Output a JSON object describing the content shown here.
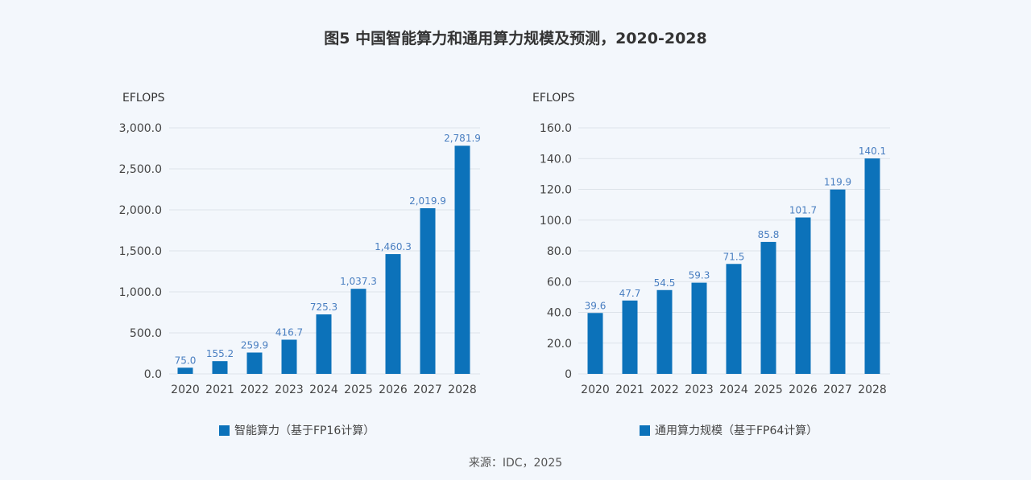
{
  "title": "图5 中国智能算力和通用算力规模及预测，2020-2028",
  "source": "来源：IDC，2025",
  "colors": {
    "bar": "#0c72ba",
    "label": "#4a7fc1"
  },
  "chart_data": [
    {
      "type": "bar",
      "title": "",
      "ylabel": "EFLOPS",
      "xlabel": "",
      "categories": [
        "2020",
        "2021",
        "2022",
        "2023",
        "2024",
        "2025",
        "2026",
        "2027",
        "2028"
      ],
      "values": [
        75.0,
        155.2,
        259.9,
        416.7,
        725.3,
        1037.3,
        1460.3,
        2019.9,
        2781.9
      ],
      "data_labels": [
        "75.0",
        "155.2",
        "259.9",
        "416.7",
        "725.3",
        "1,037.3",
        "1,460.3",
        "2,019.9",
        "2,781.9"
      ],
      "ylim": [
        0,
        3000
      ],
      "yticks": [
        0,
        500,
        1000,
        1500,
        2000,
        2500,
        3000
      ],
      "ytick_labels": [
        "0.0",
        "500.0",
        "1,000.0",
        "1,500.0",
        "2,000.0",
        "2,500.0",
        "3,000.0"
      ],
      "grid": true,
      "legend": {
        "label": "智能算力（基于FP16计算）",
        "position": "bottom"
      }
    },
    {
      "type": "bar",
      "title": "",
      "ylabel": "EFLOPS",
      "xlabel": "",
      "categories": [
        "2020",
        "2021",
        "2022",
        "2023",
        "2024",
        "2025",
        "2026",
        "2027",
        "2028"
      ],
      "values": [
        39.6,
        47.7,
        54.5,
        59.3,
        71.5,
        85.8,
        101.7,
        119.9,
        140.1
      ],
      "data_labels": [
        "39.6",
        "47.7",
        "54.5",
        "59.3",
        "71.5",
        "85.8",
        "101.7",
        "119.9",
        "140.1"
      ],
      "ylim": [
        0,
        160
      ],
      "yticks": [
        0,
        20,
        40,
        60,
        80,
        100,
        120,
        140,
        160
      ],
      "ytick_labels": [
        "0",
        "20.0",
        "40.0",
        "60.0",
        "80.0",
        "100.0",
        "120.0",
        "140.0",
        "160.0"
      ],
      "grid": true,
      "legend": {
        "label": "通用算力规模（基于FP64计算）",
        "position": "bottom"
      }
    }
  ]
}
